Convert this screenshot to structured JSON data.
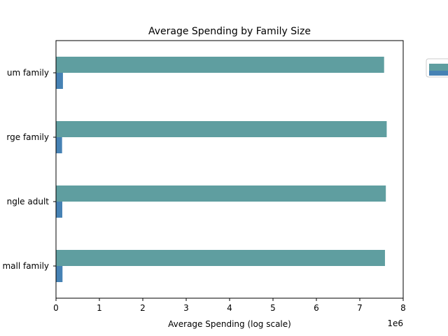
{
  "chart_data": {
    "type": "bar",
    "orientation": "horizontal",
    "title": "Average Spending by Family Size",
    "xlabel": "Average Spending (log scale)",
    "ylabel": "",
    "x_offset_label": "1e6",
    "xlim": [
      0,
      8000000
    ],
    "xticks": [
      0,
      1000000,
      2000000,
      3000000,
      4000000,
      5000000,
      6000000,
      7000000,
      8000000
    ],
    "xtick_labels": [
      "0",
      "1",
      "2",
      "3",
      "4",
      "5",
      "6",
      "7",
      "8"
    ],
    "categories": [
      "mall family",
      "ngle adult",
      "rge family",
      "um family"
    ],
    "series": [
      {
        "color": "#4682b4",
        "values": [
          150000,
          145000,
          140000,
          160000
        ]
      },
      {
        "color": "#5f9ea0",
        "values": [
          7580000,
          7600000,
          7620000,
          7560000
        ]
      }
    ],
    "legend_position": "top-right, outside",
    "grid": false
  }
}
